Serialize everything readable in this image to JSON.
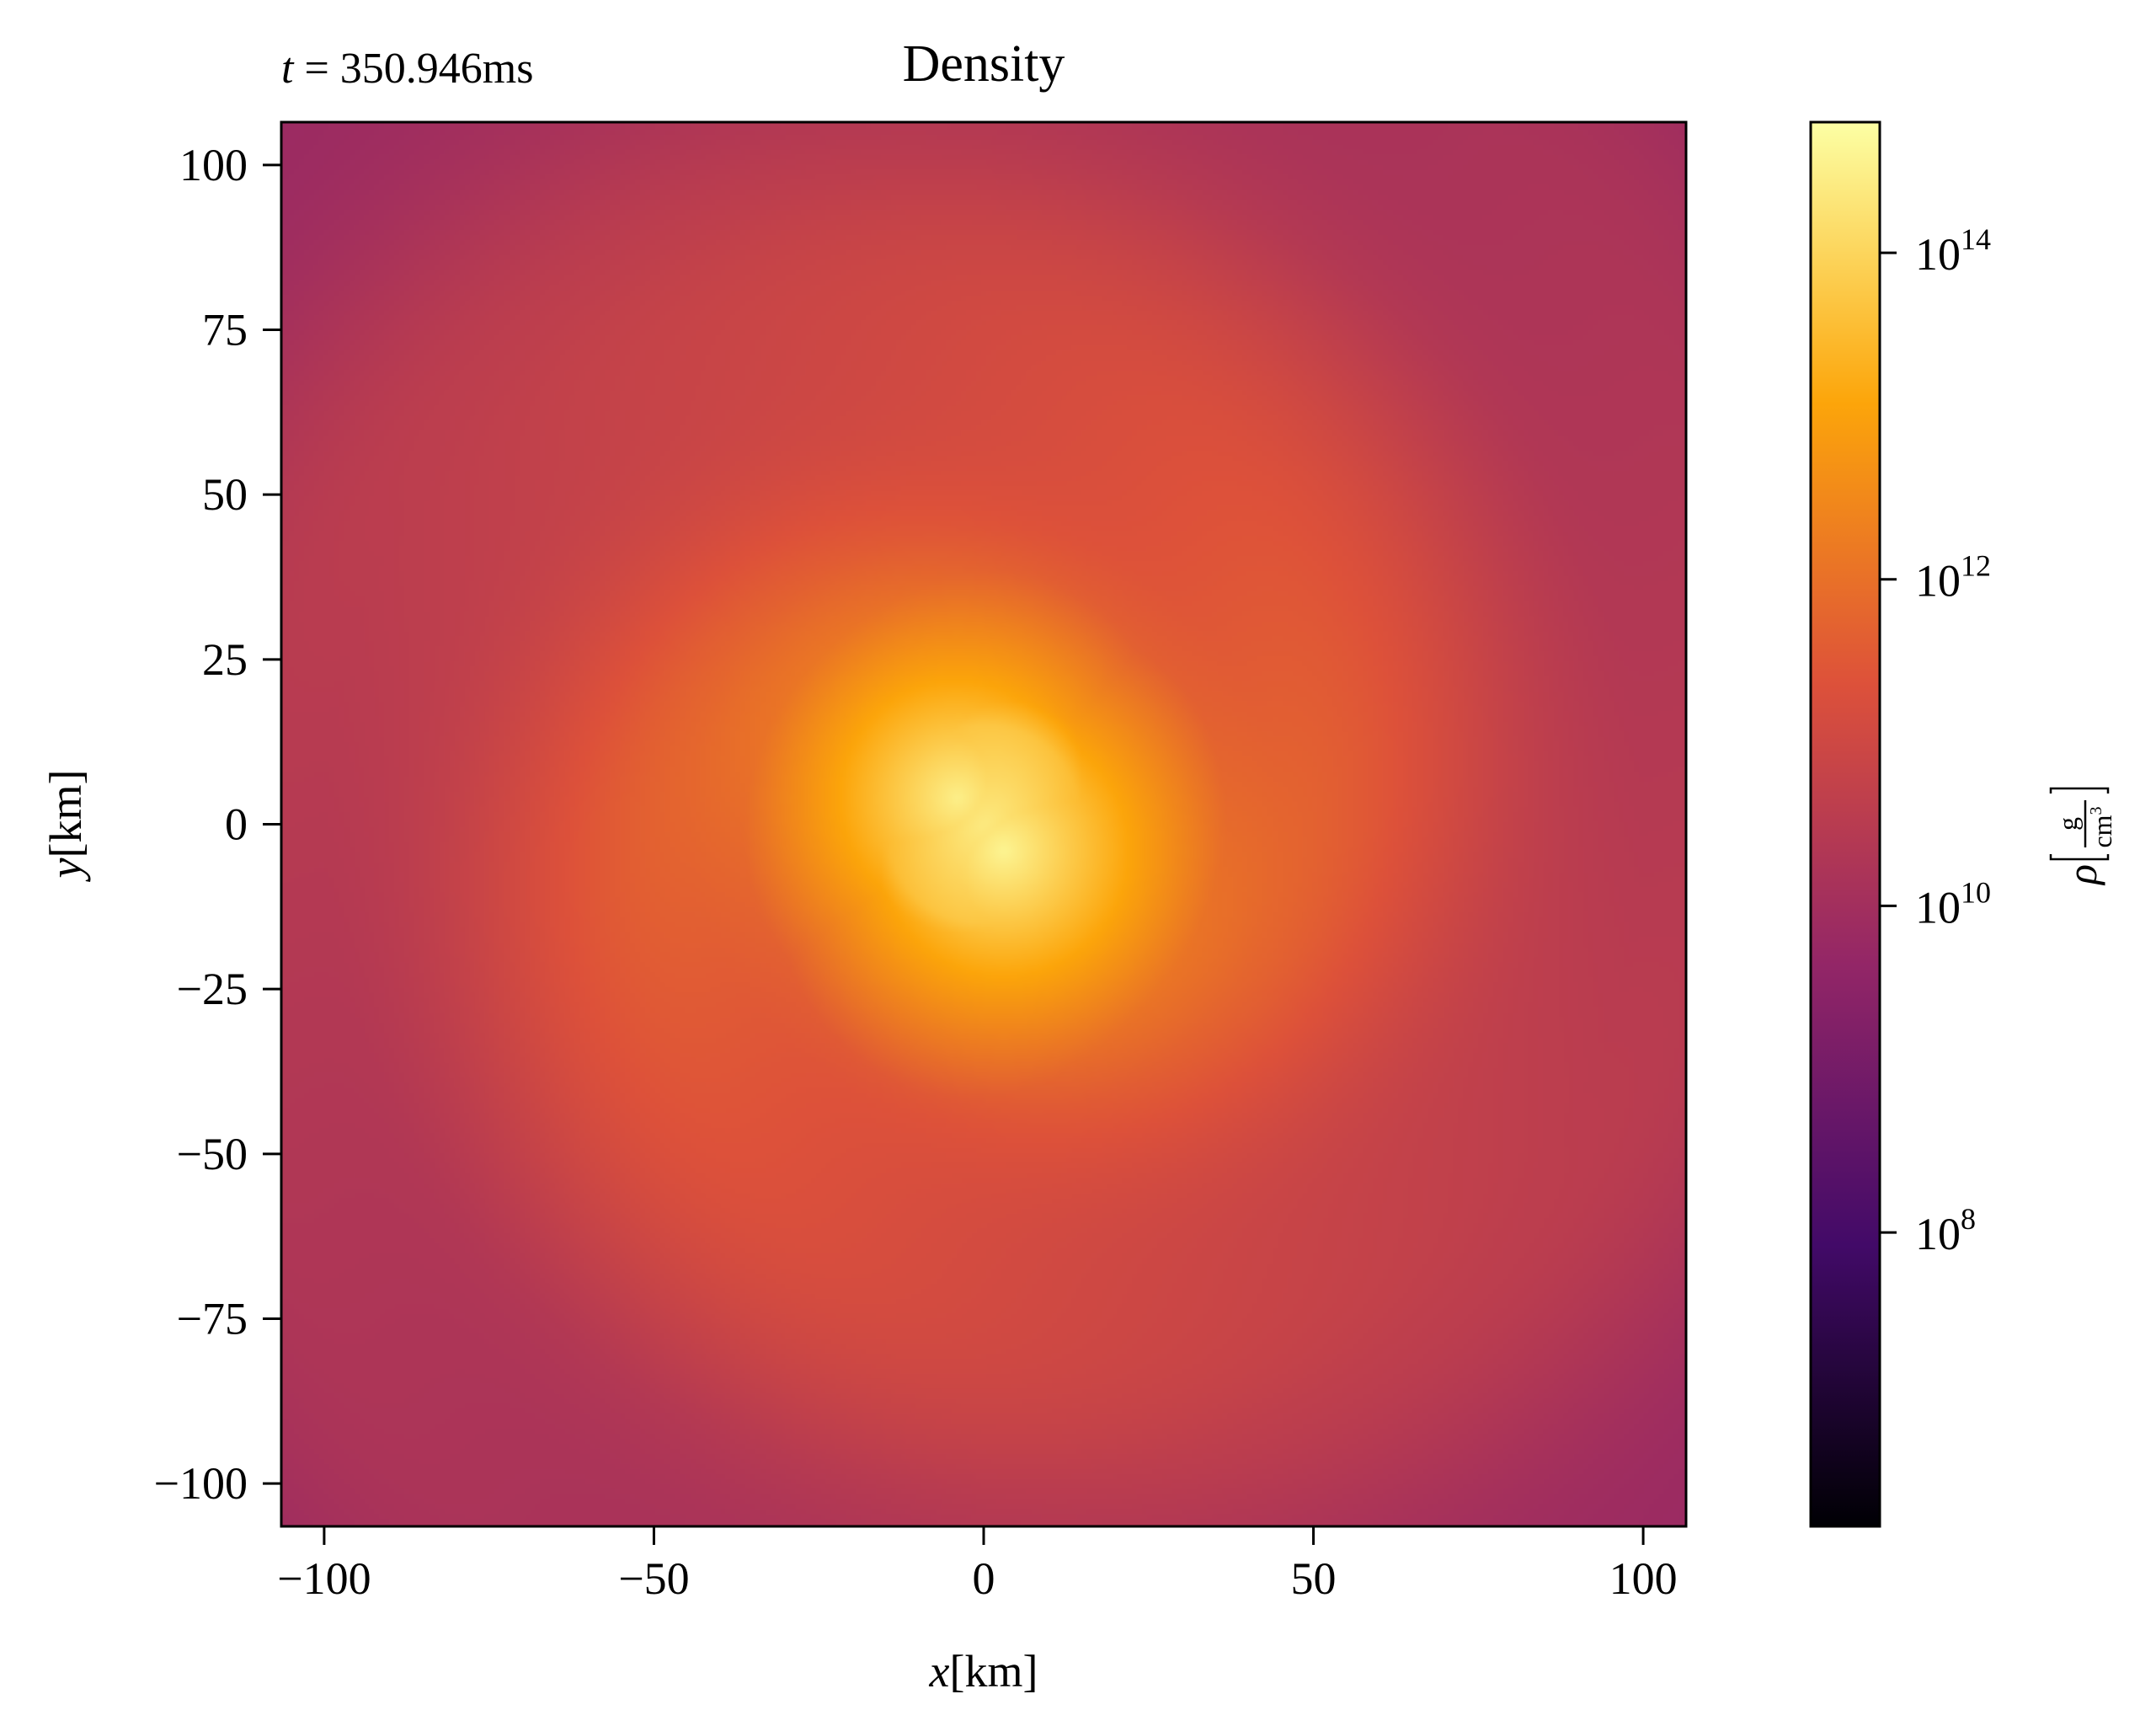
{
  "chart_data": {
    "type": "heatmap",
    "title": "Density",
    "time_label": {
      "var": "t",
      "value": "350.946ms"
    },
    "xlabel": {
      "var": "x",
      "unit": "[km]"
    },
    "ylabel": {
      "var": "y",
      "unit": "[km]"
    },
    "xlim": [
      -106.5,
      106.5
    ],
    "ylim": [
      -106.5,
      106.5
    ],
    "xticks": [
      {
        "value": -100,
        "label": "−100"
      },
      {
        "value": -50,
        "label": "−50"
      },
      {
        "value": 0,
        "label": "0"
      },
      {
        "value": 50,
        "label": "50"
      },
      {
        "value": 100,
        "label": "100"
      }
    ],
    "yticks": [
      {
        "value": 100,
        "label": "100"
      },
      {
        "value": 75,
        "label": "75"
      },
      {
        "value": 50,
        "label": "50"
      },
      {
        "value": 25,
        "label": "25"
      },
      {
        "value": 0,
        "label": "0"
      },
      {
        "value": -25,
        "label": "−25"
      },
      {
        "value": -50,
        "label": "−50"
      },
      {
        "value": -75,
        "label": "−75"
      },
      {
        "value": -100,
        "label": "−100"
      }
    ],
    "grid": false,
    "colorbar": {
      "colormap": "inferno",
      "scale": "log",
      "range_log10": [
        6.2,
        14.8
      ],
      "ticks": [
        {
          "log10": 8,
          "base": "10",
          "exp": "8"
        },
        {
          "log10": 10,
          "base": "10",
          "exp": "10"
        },
        {
          "log10": 12,
          "base": "10",
          "exp": "12"
        },
        {
          "log10": 14,
          "base": "10",
          "exp": "14"
        }
      ],
      "label": {
        "symbol": "ρ",
        "num": "g",
        "den": "cm",
        "den_exp": "3"
      },
      "colors": [
        "#000004",
        "#420a68",
        "#932667",
        "#dd513a",
        "#fca50a",
        "#fcffa4"
      ]
    },
    "density_field": {
      "description": "log10 density, azimuthally varying spiral around a bright double core",
      "core_peaks": [
        {
          "x": -4,
          "y": 4,
          "log10_rho": 14.5
        },
        {
          "x": 3,
          "y": -4,
          "log10_rho": 14.6
        }
      ],
      "radial_profile_log10": [
        {
          "r": 0,
          "log10_rho": 14.4
        },
        {
          "r": 15,
          "log10_rho": 13.6
        },
        {
          "r": 25,
          "log10_rho": 12.2
        },
        {
          "r": 45,
          "log10_rho": 11.6
        },
        {
          "r": 70,
          "log10_rho": 11.1
        },
        {
          "r": 100,
          "log10_rho": 10.5
        },
        {
          "r": 150,
          "log10_rho": 9.9
        }
      ]
    }
  }
}
